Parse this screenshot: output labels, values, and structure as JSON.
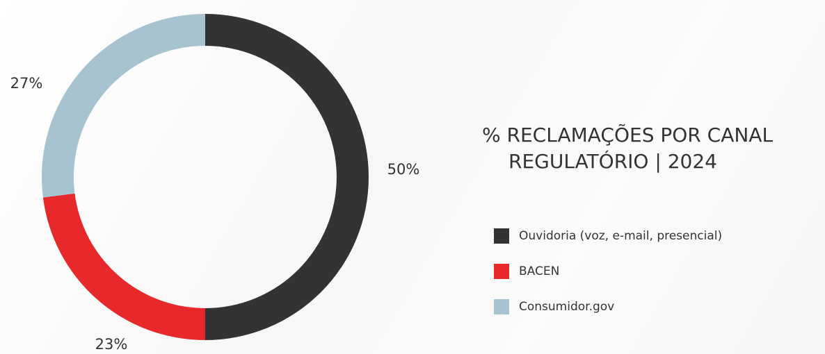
{
  "chart_data": {
    "type": "donut",
    "title": "% RECLAMAÇÕES POR CANAL REGULATÓRIO | 2024",
    "categories": [
      "Ouvidoria (voz, e-mail, presencial)",
      "BACEN",
      "Consumidor.gov"
    ],
    "values": [
      50,
      23,
      27
    ],
    "value_labels": [
      "50%",
      "23%",
      "27%"
    ],
    "colors": [
      "#333333",
      "#e8292b",
      "#a8c3d0"
    ],
    "legend": "right"
  }
}
